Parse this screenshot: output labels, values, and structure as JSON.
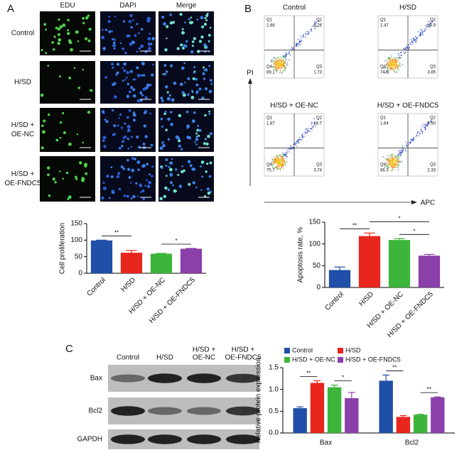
{
  "panel_a": {
    "label": "A",
    "columns": [
      "EDU",
      "DAPI",
      "Merge"
    ],
    "rows": [
      [
        "Control"
      ],
      [
        "H/SD"
      ],
      [
        "H/SD +",
        "OE-NC"
      ],
      [
        "H/SD +",
        "OE-FNDC5"
      ]
    ]
  },
  "panel_b": {
    "label": "B",
    "y_axis": "PI",
    "x_axis": "APC",
    "plots": [
      {
        "title": "Control",
        "quadrants": [
          {
            "name": "Q1",
            "value": "2.86"
          },
          {
            "name": "Q2",
            "value": "6.26"
          },
          {
            "name": "Q3",
            "value": "1.73"
          },
          {
            "name": "Q4",
            "value": "89.1"
          }
        ]
      },
      {
        "title": "H/SD",
        "quadrants": [
          {
            "name": "Q1",
            "value": "1.47"
          },
          {
            "name": "Q2",
            "value": "19.9"
          },
          {
            "name": "Q3",
            "value": "3.85"
          },
          {
            "name": "Q4",
            "value": "74.8"
          }
        ]
      },
      {
        "title": "H/SD + OE-NC",
        "quadrants": [
          {
            "name": "Q1",
            "value": "1.87"
          },
          {
            "name": "Q2",
            "value": "18.7"
          },
          {
            "name": "Q3",
            "value": "3.74"
          },
          {
            "name": "Q4",
            "value": "75.7"
          }
        ]
      },
      {
        "title": "H/SD + OE-FNDC5",
        "quadrants": [
          {
            "name": "Q1",
            "value": "1.64"
          },
          {
            "name": "Q2",
            "value": "9.50"
          },
          {
            "name": "Q3",
            "value": "2.33"
          },
          {
            "name": "Q4",
            "value": "86.3"
          }
        ]
      }
    ]
  },
  "panel_c": {
    "label": "C",
    "lanes": [
      [
        "Control"
      ],
      [
        "H/SD"
      ],
      [
        "H/SD +",
        "OE-NC"
      ],
      [
        "H/SD +",
        "OE-FNDC5"
      ]
    ],
    "bands": [
      "Bax",
      "Bcl2",
      "GAPDH"
    ]
  },
  "chart_data": [
    {
      "type": "bar",
      "ylabel": "Cell proliferation",
      "categories": [
        "Control",
        "H/SD",
        "H/SD + OE-NC",
        "H/SD + OE-FNDC5"
      ],
      "values": [
        99,
        62,
        59,
        74
      ],
      "errors": [
        1,
        7,
        1,
        1
      ],
      "colors": [
        "#1f4fa8",
        "#e8261e",
        "#3db53a",
        "#8b3fa8"
      ],
      "ylim": [
        0,
        150
      ],
      "yticks": [
        0,
        50,
        100,
        150
      ],
      "annotations": [
        {
          "text": "**",
          "between": [
            "Control",
            "H/SD"
          ]
        },
        {
          "text": "*",
          "between": [
            "H/SD + OE-NC",
            "H/SD + OE-FNDC5"
          ]
        }
      ]
    },
    {
      "type": "bar",
      "ylabel": "Apoptosis rate, %",
      "categories": [
        "Control",
        "H/SD",
        "H/SD + OE-NC",
        "H/SD + OE-FNDC5"
      ],
      "values": [
        40,
        118,
        109,
        73
      ],
      "errors": [
        7,
        7,
        3,
        3
      ],
      "colors": [
        "#1f4fa8",
        "#e8261e",
        "#3db53a",
        "#8b3fa8"
      ],
      "ylim": [
        0,
        150
      ],
      "yticks": [
        0,
        50,
        100,
        150
      ],
      "annotations": [
        {
          "text": "**",
          "between": [
            "Control",
            "H/SD"
          ]
        },
        {
          "text": "*",
          "between": [
            "H/SD",
            "H/SD + OE-FNDC5"
          ]
        },
        {
          "text": "*",
          "between": [
            "H/SD + OE-NC",
            "H/SD + OE-FNDC5"
          ]
        }
      ]
    },
    {
      "type": "bar",
      "ylabel": "Relative protein expression",
      "categories": [
        "Bax",
        "Bcl2"
      ],
      "series": [
        {
          "name": "Control",
          "color": "#1f4fa8",
          "values": [
            0.57,
            1.2
          ],
          "errors": [
            0.03,
            0.13
          ]
        },
        {
          "name": "H/SD",
          "color": "#e8261e",
          "values": [
            1.15,
            0.37
          ],
          "errors": [
            0.05,
            0.03
          ]
        },
        {
          "name": "H/SD + OE-NC",
          "color": "#3db53a",
          "values": [
            1.05,
            0.42
          ],
          "errors": [
            0.05,
            0.01
          ]
        },
        {
          "name": "H/SD + OE-FNDC5",
          "color": "#8b3fa8",
          "values": [
            0.8,
            0.82
          ],
          "errors": [
            0.13,
            0.01
          ]
        }
      ],
      "ylim": [
        0,
        1.5
      ],
      "yticks": [
        {
          "value": 0,
          "label": "0.0"
        },
        0.5,
        {
          "value": 1,
          "label": "1.0"
        },
        1.5
      ],
      "annotations": [
        {
          "text": "**",
          "category": "Bax",
          "between": [
            "Control",
            "H/SD"
          ]
        },
        {
          "text": "*",
          "category": "Bax",
          "between": [
            "H/SD + OE-NC",
            "H/SD + OE-FNDC5"
          ]
        },
        {
          "text": "**",
          "category": "Bcl2",
          "between": [
            "Control",
            "H/SD"
          ]
        },
        {
          "text": "**",
          "category": "Bcl2",
          "between": [
            "H/SD + OE-NC",
            "H/SD + OE-FNDC5"
          ]
        }
      ]
    }
  ]
}
